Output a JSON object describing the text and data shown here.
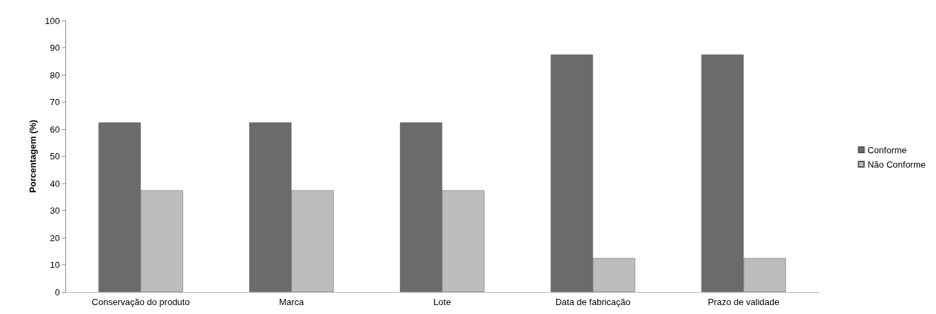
{
  "chart_data": {
    "type": "bar",
    "ylabel": "Porcentagem (%)",
    "categories": [
      "Conservação do produto",
      "Marca",
      "Lote",
      "Data de fabricação",
      "Prazo de validade"
    ],
    "series": [
      {
        "name": "Conforme",
        "color": "#6b6b6b",
        "values": [
          62.5,
          62.5,
          62.5,
          87.5,
          87.5
        ]
      },
      {
        "name": "Não Conforme",
        "color": "#bdbdbd",
        "values": [
          37.5,
          37.5,
          37.5,
          12.5,
          12.5
        ]
      }
    ],
    "ylim": [
      0,
      100
    ],
    "yticks": [
      0,
      10,
      20,
      30,
      40,
      50,
      60,
      70,
      80,
      90,
      100
    ],
    "grid": false,
    "legend": "right"
  }
}
